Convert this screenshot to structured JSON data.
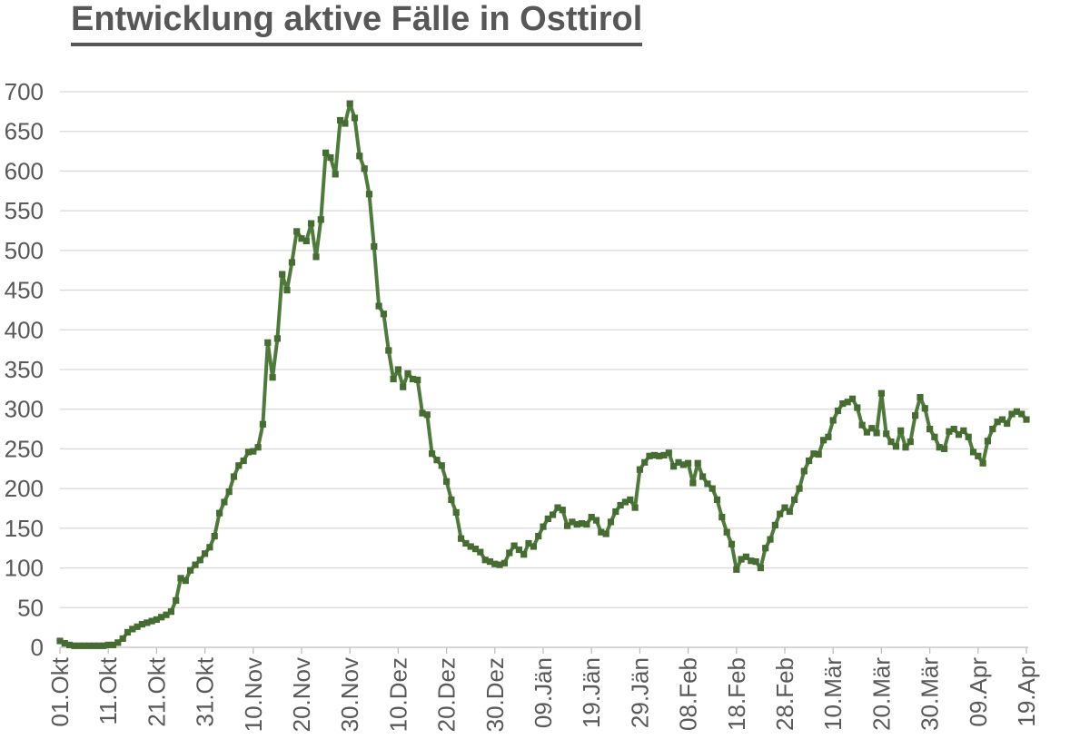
{
  "page": {
    "title": "Entwicklung aktive Fälle in Osttirol"
  },
  "colors": {
    "title_text": "#575757",
    "axis_text": "#595959",
    "gridline": "#d9d9d9",
    "axis_line": "#bfbfbf",
    "line": "#4e7b3c",
    "marker": "#466d31"
  },
  "chart_data": {
    "type": "line",
    "title": "Entwicklung aktive Fälle in Osttirol",
    "xlabel": "",
    "ylabel": "",
    "ylim": [
      0,
      700
    ],
    "ytick_step": 50,
    "yticks": [
      0,
      50,
      100,
      150,
      200,
      250,
      300,
      350,
      400,
      450,
      500,
      550,
      600,
      650,
      700
    ],
    "grid": true,
    "legend_position": "none",
    "marker_shape": "square",
    "x_tick_labels": [
      "01.Okt",
      "11.Okt",
      "21.Okt",
      "31.Okt",
      "10.Nov",
      "20.Nov",
      "30.Nov",
      "10.Dez",
      "20.Dez",
      "30.Dez",
      "09.Jän",
      "19.Jän",
      "29.Jän",
      "08.Feb",
      "18.Feb",
      "28.Feb",
      "10.Mär",
      "20.Mär",
      "30.Mär",
      "09.Apr",
      "19.Apr"
    ],
    "points_per_tick": 10,
    "x_start_label": "01.Okt",
    "x_end_label": "19.Apr",
    "values": [
      8,
      5,
      3,
      2,
      2,
      2,
      2,
      2,
      2,
      2,
      3,
      3,
      6,
      11,
      19,
      23,
      26,
      29,
      31,
      33,
      35,
      38,
      41,
      45,
      59,
      87,
      84,
      97,
      104,
      110,
      118,
      126,
      140,
      169,
      183,
      196,
      215,
      229,
      235,
      246,
      247,
      252,
      281,
      384,
      340,
      389,
      470,
      450,
      485,
      524,
      515,
      512,
      534,
      492,
      539,
      623,
      617,
      596,
      664,
      660,
      685,
      667,
      619,
      603,
      571,
      505,
      430,
      420,
      374,
      338,
      350,
      328,
      345,
      338,
      337,
      295,
      293,
      244,
      236,
      229,
      209,
      186,
      170,
      137,
      131,
      127,
      124,
      120,
      110,
      108,
      105,
      104,
      106,
      119,
      128,
      123,
      117,
      131,
      127,
      140,
      152,
      162,
      167,
      176,
      173,
      153,
      158,
      155,
      156,
      155,
      164,
      160,
      145,
      143,
      158,
      171,
      179,
      183,
      186,
      176,
      224,
      233,
      241,
      242,
      241,
      242,
      245,
      228,
      233,
      230,
      232,
      207,
      232,
      215,
      206,
      200,
      186,
      164,
      145,
      130,
      98,
      111,
      114,
      109,
      108,
      100,
      125,
      136,
      154,
      168,
      176,
      171,
      186,
      200,
      222,
      235,
      244,
      243,
      261,
      265,
      286,
      298,
      307,
      309,
      313,
      302,
      280,
      271,
      276,
      270,
      320,
      269,
      259,
      253,
      273,
      252,
      259,
      292,
      315,
      301,
      275,
      265,
      252,
      250,
      272,
      275,
      268,
      273,
      265,
      246,
      241,
      232,
      260,
      275,
      284,
      287,
      282,
      294,
      297,
      294,
      287
    ]
  }
}
